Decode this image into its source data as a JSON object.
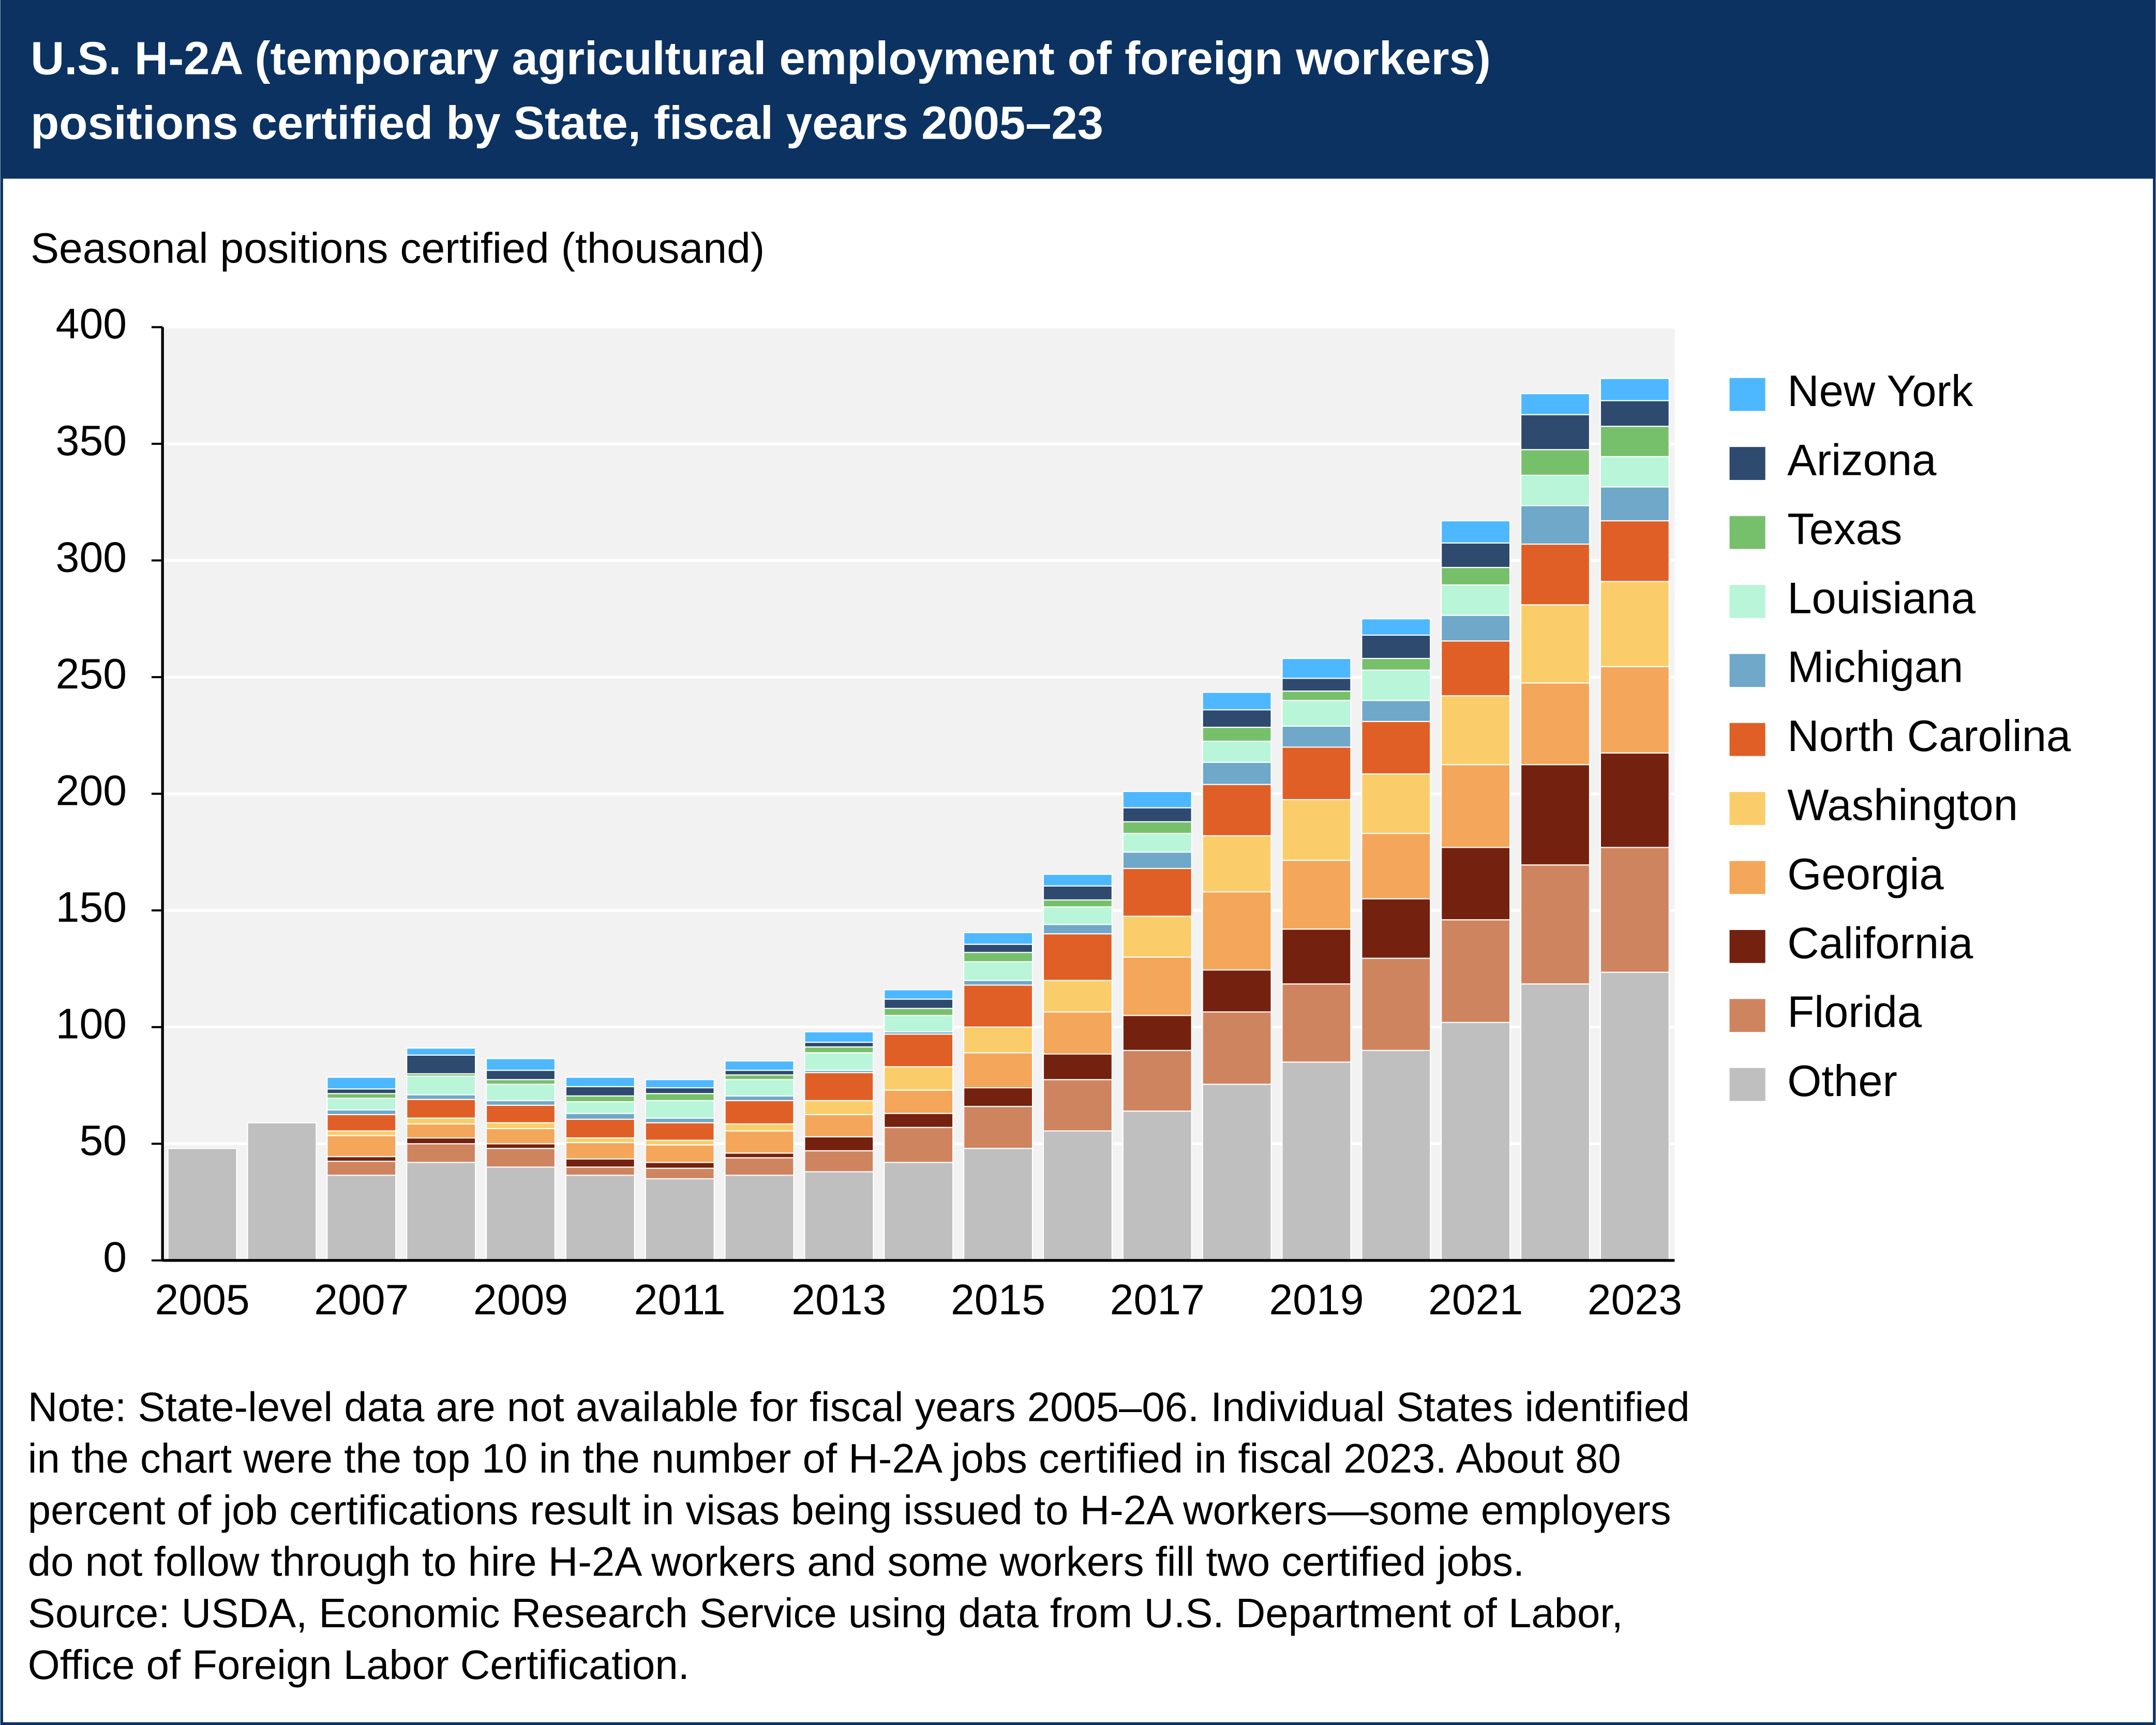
{
  "chart_data": {
    "type": "stacked-bar",
    "title": [
      "U.S. H-2A (temporary agricultural employment of foreign workers)",
      "positions certified by State, fiscal years 2005–23"
    ],
    "y_label": "Seasonal positions certified (thousand)",
    "categories": [
      "2005",
      null,
      "2007",
      null,
      "2009",
      null,
      "2011",
      null,
      "2013",
      null,
      "2015",
      null,
      "2017",
      null,
      "2019",
      null,
      "2021",
      null,
      "2023"
    ],
    "ylim": [
      0,
      400
    ],
    "yticks": [
      0,
      50,
      100,
      150,
      200,
      250,
      300,
      350,
      400
    ],
    "grid": true,
    "legend": "right",
    "series": [
      {
        "name": "Other",
        "color": "#bfbfbf",
        "values": [
          48,
          59,
          36.5,
          42,
          40,
          36.5,
          35,
          36.5,
          38,
          42,
          48,
          55.5,
          64,
          75.5,
          85,
          90,
          102,
          118.5,
          123.5
        ]
      },
      {
        "name": "Florida",
        "color": "#cf8460",
        "values": [
          null,
          null,
          6,
          8,
          8,
          3.5,
          4.5,
          7.5,
          9,
          15,
          18,
          22,
          26,
          31,
          33.5,
          39.5,
          44,
          51,
          53.5
        ]
      },
      {
        "name": "California",
        "color": "#74210f",
        "values": [
          null,
          null,
          2,
          2.5,
          2,
          3.5,
          2.5,
          2,
          6,
          6,
          8,
          11,
          15,
          18,
          23.5,
          25.5,
          31,
          43,
          40.5
        ]
      },
      {
        "name": "Georgia",
        "color": "#f4a65a",
        "values": [
          null,
          null,
          9,
          6,
          6.5,
          7,
          7.5,
          9.5,
          9.5,
          10,
          15,
          18,
          25,
          33.5,
          29.5,
          28,
          35.5,
          35,
          37
        ]
      },
      {
        "name": "Washington",
        "color": "#fbcd6a",
        "values": [
          null,
          null,
          2,
          2.5,
          2.5,
          2,
          2,
          3,
          6,
          10,
          11,
          13.5,
          17.5,
          24,
          26,
          25.5,
          29.5,
          33.5,
          36.5
        ]
      },
      {
        "name": "North Carolina",
        "color": "#e05f26",
        "values": [
          null,
          null,
          7,
          8,
          7.5,
          8,
          7.5,
          10,
          12,
          14,
          18,
          20,
          20.5,
          22,
          22.5,
          22.5,
          23.5,
          26,
          26
        ]
      },
      {
        "name": "Michigan",
        "color": "#6fa8c8",
        "values": [
          null,
          null,
          2,
          2,
          2,
          2.5,
          2,
          2,
          1,
          1,
          2,
          4,
          7,
          9.5,
          9,
          9,
          11,
          16.5,
          14.5
        ]
      },
      {
        "name": "Louisiana",
        "color": "#b9f5d8",
        "values": [
          null,
          null,
          5,
          8,
          7,
          5,
          7.5,
          7,
          7.5,
          7,
          8,
          7.5,
          8,
          9,
          11,
          13,
          13,
          13,
          13
        ]
      },
      {
        "name": "Texas",
        "color": "#77c06b",
        "values": [
          null,
          null,
          2,
          1,
          2,
          2.5,
          3,
          2,
          2.5,
          3,
          4,
          3,
          5,
          6,
          4,
          5,
          7.5,
          11,
          13
        ]
      },
      {
        "name": "Arizona",
        "color": "#2e4a6e",
        "values": [
          null,
          null,
          2,
          8,
          4,
          4,
          2.5,
          2,
          2,
          4,
          3.5,
          6,
          6,
          7.5,
          5.5,
          10,
          10.5,
          15,
          11
        ]
      },
      {
        "name": "New York",
        "color": "#4db8ff",
        "values": [
          null,
          null,
          5,
          3,
          5,
          4,
          3.5,
          4,
          4.5,
          4,
          5,
          5,
          7,
          7.5,
          8.5,
          7,
          9.5,
          9,
          9.5
        ]
      }
    ],
    "note": [
      "Note: State-level data are not available for fiscal years 2005–06. Individual States identified",
      "in the chart were the top 10 in the number of H-2A jobs certified in fiscal 2023. About 80",
      "percent of job certifications result in visas being issued to H-2A workers—some employers",
      "do not follow through to hire H-2A workers and some workers fill two certified jobs.",
      "Source: USDA, Economic Research Service using data from U.S. Department of Labor,",
      "Office of Foreign Labor Certification."
    ]
  }
}
